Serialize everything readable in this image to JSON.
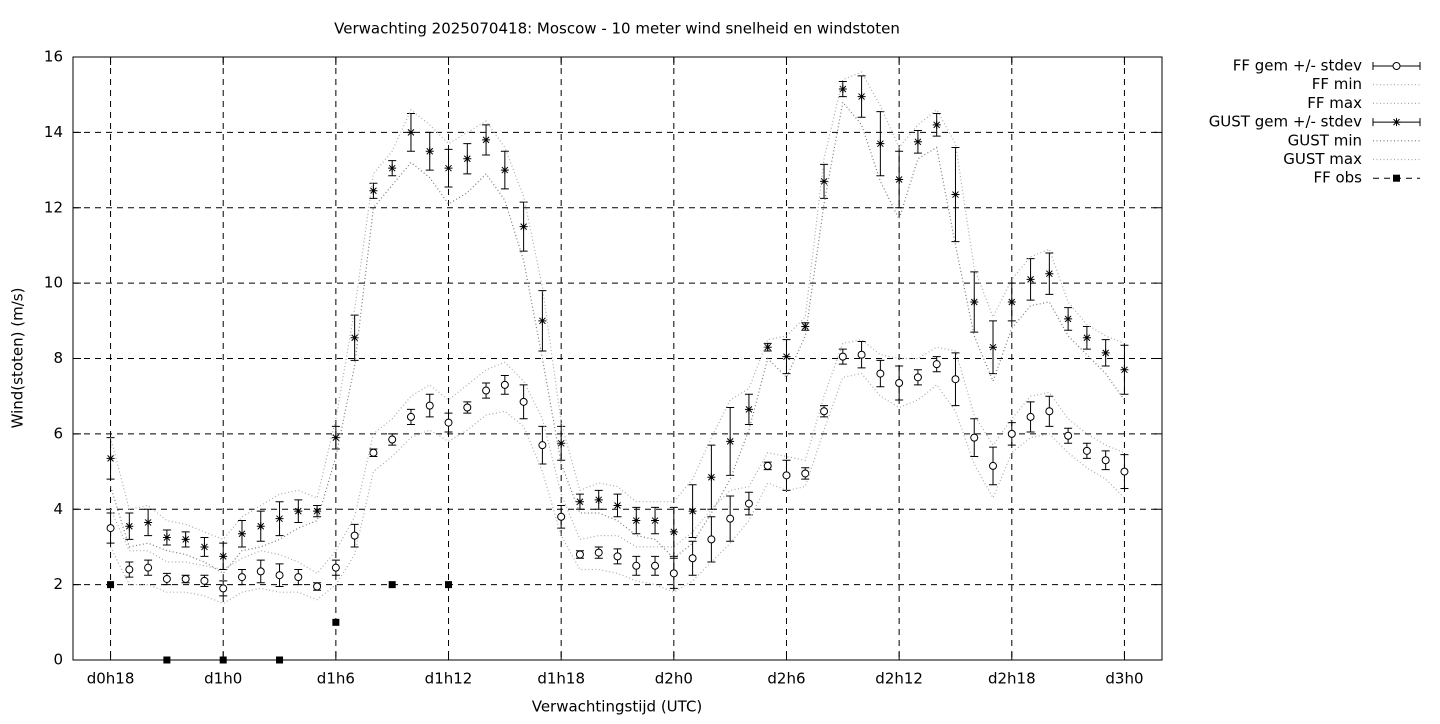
{
  "chart_data": {
    "type": "errorbar",
    "title": "Verwachting 2025070418: Moscow - 10 meter wind snelheid en windstoten",
    "xlabel": "Verwachtingstijd (UTC)",
    "ylabel": "Wind(stoten) (m/s)",
    "x": [
      0,
      1,
      2,
      3,
      4,
      5,
      6,
      7,
      8,
      9,
      10,
      11,
      12,
      13,
      14,
      15,
      16,
      17,
      18,
      19,
      20,
      21,
      22,
      23,
      24,
      25,
      26,
      27,
      28,
      29,
      30,
      31,
      32,
      33,
      34,
      35,
      36,
      37,
      38,
      39,
      40,
      41,
      42,
      43,
      44,
      45,
      46,
      47,
      48,
      49,
      50,
      51,
      52,
      53,
      54
    ],
    "xlim": [
      -2,
      56
    ],
    "xticks": [
      {
        "value": 0,
        "label": "d0h18"
      },
      {
        "value": 6,
        "label": "d1h0"
      },
      {
        "value": 12,
        "label": "d1h6"
      },
      {
        "value": 18,
        "label": "d1h12"
      },
      {
        "value": 24,
        "label": "d1h18"
      },
      {
        "value": 30,
        "label": "d2h0"
      },
      {
        "value": 36,
        "label": "d2h6"
      },
      {
        "value": 42,
        "label": "d2h12"
      },
      {
        "value": 48,
        "label": "d2h18"
      },
      {
        "value": 54,
        "label": "d3h0"
      }
    ],
    "ylim": [
      0,
      16
    ],
    "yticks": [
      0,
      2,
      4,
      6,
      8,
      10,
      12,
      14,
      16
    ],
    "grid": true,
    "legend": "outside-right",
    "series": [
      {
        "name": "FF gem +/- stdev",
        "color": "#000000",
        "marker": "circle",
        "values": [
          3.5,
          2.4,
          2.45,
          2.15,
          2.15,
          2.1,
          1.9,
          2.2,
          2.35,
          2.25,
          2.2,
          1.95,
          2.45,
          3.3,
          5.5,
          5.85,
          6.45,
          6.75,
          6.3,
          6.7,
          7.15,
          7.3,
          6.85,
          5.7,
          3.8,
          2.8,
          2.85,
          2.75,
          2.5,
          2.5,
          2.3,
          2.7,
          3.2,
          3.75,
          4.15,
          5.15,
          4.9,
          4.95,
          6.6,
          8.05,
          8.1,
          7.6,
          7.35,
          7.5,
          7.85,
          7.45,
          5.9,
          5.15,
          6.0,
          6.45,
          6.6,
          5.95,
          5.55,
          5.3,
          5.0
        ],
        "errors": [
          0.4,
          0.2,
          0.2,
          0.15,
          0.1,
          0.15,
          0.2,
          0.2,
          0.3,
          0.3,
          0.2,
          0.1,
          0.2,
          0.3,
          0.1,
          0.15,
          0.2,
          0.3,
          0.25,
          0.15,
          0.2,
          0.25,
          0.45,
          0.5,
          0.3,
          0.1,
          0.15,
          0.2,
          0.25,
          0.25,
          0.4,
          0.45,
          0.6,
          0.6,
          0.3,
          0.1,
          0.4,
          0.15,
          0.15,
          0.2,
          0.35,
          0.35,
          0.45,
          0.2,
          0.2,
          0.7,
          0.5,
          0.5,
          0.3,
          0.4,
          0.4,
          0.2,
          0.2,
          0.25,
          0.45
        ]
      },
      {
        "name": "FF min",
        "color": "#aaaaaa",
        "line": "dotted",
        "values": [
          3.0,
          2.0,
          2.0,
          1.8,
          1.8,
          1.7,
          1.5,
          1.8,
          1.9,
          1.8,
          1.8,
          1.6,
          2.0,
          2.8,
          5.0,
          5.4,
          5.9,
          6.1,
          5.8,
          6.1,
          6.5,
          6.6,
          6.2,
          5.0,
          3.3,
          2.4,
          2.4,
          2.3,
          2.1,
          2.0,
          1.8,
          2.1,
          2.6,
          3.1,
          3.7,
          4.7,
          4.5,
          4.6,
          6.1,
          7.5,
          7.6,
          7.0,
          6.7,
          6.9,
          7.3,
          6.6,
          5.2,
          4.3,
          5.5,
          5.9,
          6.0,
          5.5,
          5.1,
          4.8,
          4.3
        ]
      },
      {
        "name": "FF max",
        "color": "#aaaaaa",
        "line": "dotted",
        "values": [
          4.0,
          2.9,
          2.9,
          2.6,
          2.6,
          2.5,
          2.4,
          2.7,
          2.9,
          2.8,
          2.6,
          2.3,
          2.9,
          3.8,
          6.0,
          6.4,
          7.0,
          7.3,
          6.9,
          7.3,
          7.7,
          7.9,
          7.4,
          6.4,
          4.4,
          3.2,
          3.3,
          3.3,
          3.0,
          3.0,
          3.0,
          3.4,
          4.0,
          4.5,
          4.6,
          5.5,
          5.4,
          5.3,
          7.0,
          8.4,
          8.5,
          8.1,
          8.0,
          8.0,
          8.3,
          8.2,
          6.5,
          5.7,
          6.4,
          7.0,
          7.1,
          6.4,
          6.0,
          5.7,
          5.5
        ]
      },
      {
        "name": "GUST gem +/- stdev",
        "color": "#000000",
        "marker": "star",
        "values": [
          5.35,
          3.55,
          3.65,
          3.25,
          3.2,
          3.0,
          2.75,
          3.35,
          3.55,
          3.75,
          3.95,
          3.95,
          5.9,
          8.55,
          12.45,
          13.05,
          14.0,
          13.5,
          13.05,
          13.3,
          13.8,
          13.0,
          11.5,
          9.0,
          5.75,
          4.2,
          4.25,
          4.1,
          3.7,
          3.7,
          3.4,
          3.95,
          4.85,
          5.8,
          6.65,
          8.3,
          8.05,
          8.85,
          12.7,
          15.15,
          14.95,
          13.7,
          12.75,
          13.75,
          14.2,
          12.35,
          9.5,
          8.3,
          9.5,
          10.1,
          10.25,
          9.05,
          8.55,
          8.15,
          7.7
        ],
        "errors": [
          0.55,
          0.35,
          0.35,
          0.2,
          0.2,
          0.25,
          0.35,
          0.35,
          0.4,
          0.45,
          0.3,
          0.15,
          0.3,
          0.6,
          0.2,
          0.2,
          0.5,
          0.5,
          0.5,
          0.4,
          0.4,
          0.5,
          0.65,
          0.8,
          0.45,
          0.2,
          0.25,
          0.3,
          0.35,
          0.35,
          0.65,
          0.7,
          0.85,
          0.9,
          0.4,
          0.1,
          0.45,
          0.1,
          0.45,
          0.2,
          0.55,
          0.85,
          0.75,
          0.3,
          0.3,
          1.25,
          0.8,
          0.7,
          0.5,
          0.55,
          0.55,
          0.3,
          0.3,
          0.35,
          0.65
        ]
      },
      {
        "name": "GUST min",
        "color": "#777777",
        "line": "dotted",
        "values": [
          4.6,
          3.0,
          3.1,
          2.9,
          2.8,
          2.6,
          2.3,
          2.9,
          3.0,
          3.2,
          3.5,
          3.7,
          5.4,
          7.8,
          12.0,
          12.6,
          13.2,
          12.8,
          12.1,
          12.4,
          12.9,
          12.2,
          10.6,
          8.0,
          5.2,
          3.9,
          3.9,
          3.7,
          3.3,
          3.2,
          2.7,
          3.1,
          3.9,
          4.8,
          6.1,
          8.0,
          7.5,
          8.6,
          12.1,
          14.8,
          14.2,
          12.7,
          11.7,
          13.3,
          13.6,
          11.0,
          8.6,
          7.4,
          8.8,
          9.4,
          9.5,
          8.6,
          8.1,
          7.6,
          6.9
        ]
      },
      {
        "name": "GUST max",
        "color": "#aaaaaa",
        "line": "dotted",
        "values": [
          5.9,
          4.0,
          4.1,
          3.7,
          3.6,
          3.4,
          3.2,
          3.8,
          4.1,
          4.4,
          4.5,
          4.3,
          6.4,
          9.3,
          12.9,
          13.5,
          14.6,
          14.2,
          13.7,
          14.0,
          14.3,
          13.6,
          12.3,
          9.9,
          6.3,
          4.5,
          4.7,
          4.6,
          4.2,
          4.2,
          4.2,
          4.8,
          5.9,
          6.9,
          7.2,
          8.5,
          8.6,
          9.1,
          13.3,
          15.4,
          15.6,
          14.7,
          13.6,
          14.2,
          14.6,
          13.7,
          10.4,
          9.1,
          10.1,
          10.7,
          10.9,
          9.5,
          8.9,
          8.6,
          8.4
        ]
      },
      {
        "name": "FF obs",
        "color": "#000000",
        "marker": "square",
        "x": [
          0,
          3,
          6,
          9,
          12,
          15,
          18
        ],
        "values": [
          2,
          0,
          0,
          0,
          1,
          2,
          2
        ]
      }
    ]
  }
}
